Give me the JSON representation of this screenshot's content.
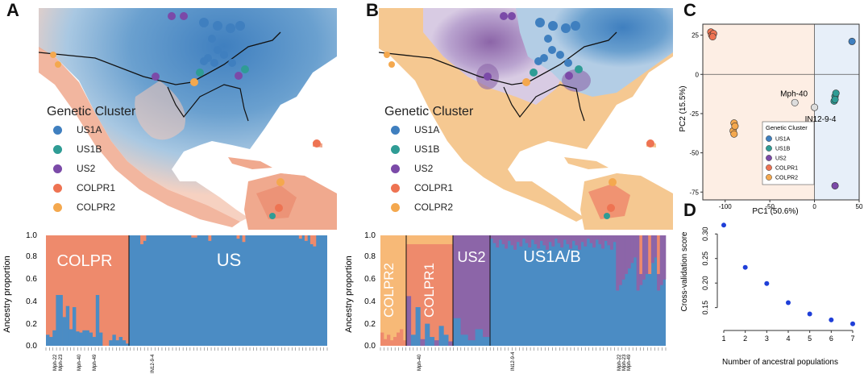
{
  "panels": {
    "a_label": "A",
    "b_label": "B",
    "c_label": "C",
    "d_label": "D"
  },
  "legend": {
    "title": "Genetic Cluster",
    "items": [
      {
        "label": "US1A",
        "color": "#3f7fbf"
      },
      {
        "label": "US1B",
        "color": "#2f9c95"
      },
      {
        "label": "US2",
        "color": "#7b4aa8"
      },
      {
        "label": "COLPR1",
        "color": "#ee7352"
      },
      {
        "label": "COLPR2",
        "color": "#f4a84e"
      }
    ]
  },
  "colors": {
    "us_blue": "#4b8cc4",
    "colpr_orange": "#ee8a6c",
    "colpr2_yellow": "#f7b977",
    "us2_purple": "#8c65a8",
    "us1b_teal": "#4aa3a0"
  },
  "ancestry_a": {
    "ylabel": "Ancestry proportion",
    "yticks": [
      "0.0",
      "0.2",
      "0.4",
      "0.6",
      "0.8",
      "1.0"
    ],
    "group_labels": [
      "COLPR",
      "US"
    ],
    "sample_labels": [
      "Mph-22",
      "Mph-23",
      "Mph-40",
      "Mph-49",
      "IN12-9-4"
    ]
  },
  "ancestry_b": {
    "ylabel": "Ancestry proportion",
    "yticks": [
      "0.0",
      "0.2",
      "0.4",
      "0.6",
      "0.8",
      "1.0"
    ],
    "group_labels": [
      "COLPR2",
      "COLPR1",
      "US2",
      "US1A/B"
    ],
    "sample_labels": [
      "Mph-40",
      "IN12-9-4",
      "Mph-22",
      "Mph-23",
      "Mph-49"
    ]
  },
  "chart_data": [
    {
      "type": "scatter",
      "id": "pca",
      "title": "",
      "xlabel": "PC1 (50.6%)",
      "ylabel": "PC2 (15.5%)",
      "xlim": [
        -125,
        50
      ],
      "ylim": [
        -80,
        32
      ],
      "xticks": [
        "-100",
        "-50",
        "0",
        "50"
      ],
      "yticks": [
        "25",
        "0",
        "-25",
        "-50",
        "-75"
      ],
      "legend_title": "Genetic Cluster",
      "annotations": [
        "Mph-40",
        "IN12-9-4"
      ],
      "series": [
        {
          "name": "US1A",
          "color": "#3f7fbf",
          "points": [
            [
              42,
              21
            ]
          ]
        },
        {
          "name": "US1B",
          "color": "#2f9c95",
          "points": [
            [
              23,
              -14
            ],
            [
              22,
              -17
            ],
            [
              24,
              -12
            ],
            [
              23,
              -16
            ]
          ]
        },
        {
          "name": "US2",
          "color": "#7b4aa8",
          "points": [
            [
              23,
              -71
            ]
          ]
        },
        {
          "name": "COLPR1",
          "color": "#ee7352",
          "points": [
            [
              -116,
              27
            ],
            [
              -115,
              25
            ],
            [
              -113,
              26
            ],
            [
              -114,
              24
            ]
          ]
        },
        {
          "name": "COLPR2",
          "color": "#f4a84e",
          "points": [
            [
              -90,
              -31
            ],
            [
              -91,
              -36
            ],
            [
              -89,
              -33
            ],
            [
              -90,
              -38
            ]
          ]
        },
        {
          "name": "Mph-40",
          "color": "#dddddd",
          "points": [
            [
              -22,
              -18
            ]
          ]
        },
        {
          "name": "IN12-9-4",
          "color": "#dddddd",
          "points": [
            [
              0,
              -21
            ]
          ]
        }
      ]
    },
    {
      "type": "scatter",
      "id": "cv",
      "xlabel": "Number of ancestral populations",
      "ylabel": "Cross-validation score",
      "xlim": [
        0.7,
        7.3
      ],
      "ylim": [
        0.11,
        0.33
      ],
      "yticks": [
        "0.15",
        "0.20",
        "0.25",
        "0.30"
      ],
      "xticks": [
        "1",
        "2",
        "3",
        "4",
        "5",
        "6",
        "7"
      ],
      "x": [
        1,
        2,
        3,
        4,
        5,
        6,
        7
      ],
      "values": [
        0.318,
        0.232,
        0.199,
        0.16,
        0.137,
        0.125,
        0.117
      ]
    }
  ]
}
